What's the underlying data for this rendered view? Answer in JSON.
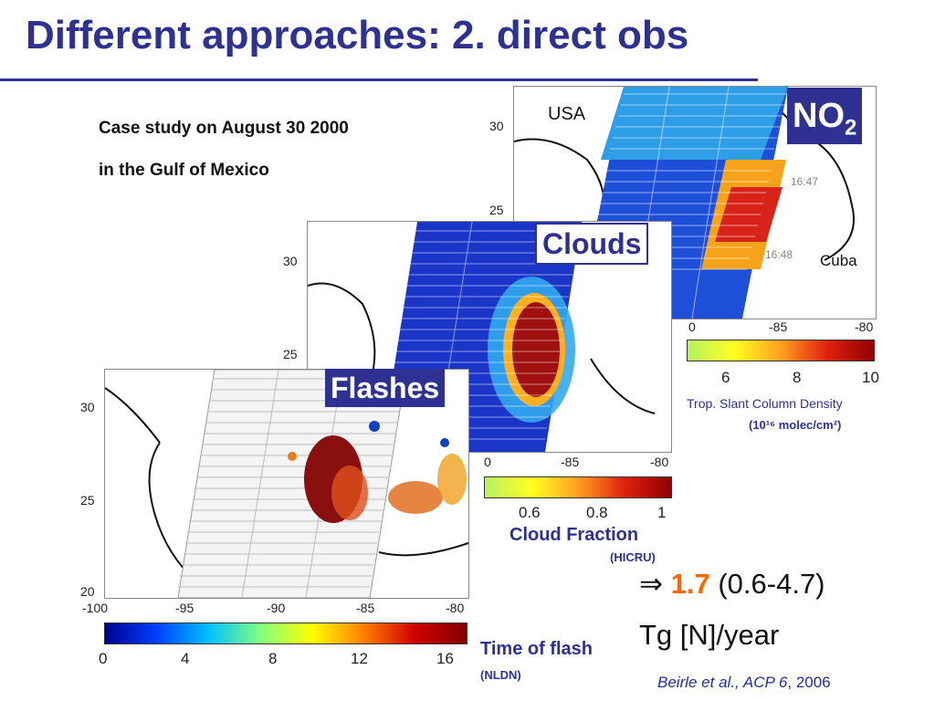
{
  "title": "Different approaches: 2. direct obs",
  "case_study": {
    "line1": "Case study on August 30 2000",
    "line2": "in the Gulf of Mexico"
  },
  "no2_panel": {
    "label_main": "NO",
    "label_sub": "2",
    "map_label_country": "USA",
    "map_label_island": "Cuba",
    "y_ticks": [
      "30",
      "25"
    ],
    "x_ticks": [
      "0",
      "-85",
      "-80"
    ],
    "time_labels": [
      "16:47",
      "16:48"
    ],
    "colorbar_ticks": [
      "6",
      "8",
      "10"
    ],
    "colorbar_label": "Trop. Slant Column Density",
    "colorbar_units": "(10¹⁶ molec/cm²)"
  },
  "clouds_panel": {
    "label": "Clouds",
    "y_ticks": [
      "30",
      "25"
    ],
    "x_ticks": [
      "0",
      "-85",
      "-80"
    ],
    "colorbar_ticks": [
      "0.6",
      "0.8",
      "1"
    ],
    "colorbar_label": "Cloud Fraction",
    "colorbar_source": "(HICRU)"
  },
  "flashes_panel": {
    "label": "Flashes",
    "y_ticks": [
      "30",
      "25",
      "20"
    ],
    "x_ticks": [
      "-100",
      "-95",
      "-90",
      "-85",
      "-80"
    ],
    "colorbar_ticks": [
      "0",
      "4",
      "8",
      "12",
      "16"
    ],
    "colorbar_label": "Time of flash",
    "colorbar_source": "(NLDN)"
  },
  "result": {
    "arrow": "⇒",
    "value": "1.7",
    "range": "(0.6-4.7)",
    "units": "Tg [N]/year"
  },
  "citation": {
    "authors": "Beirle et al., ",
    "journal": "ACP 6",
    "year": ", 2006"
  },
  "colors": {
    "accent_blue": "#2e3192",
    "result_orange": "#ff6600",
    "citation_blue": "#1f2fa0"
  }
}
